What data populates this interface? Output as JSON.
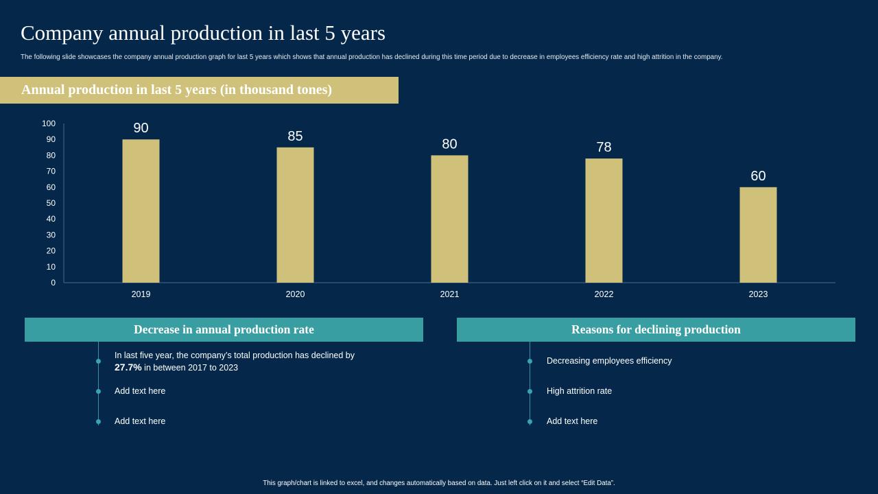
{
  "title": "Company annual production in last 5 years",
  "subtitle": "The following slide showcases the company annual production graph for last 5 years which shows that annual production has declined during this time period due to decrease in employees efficiency rate and high attrition in the company.",
  "chart_banner": "Annual production in last 5 years (in thousand tones)",
  "colors": {
    "background": "#05284a",
    "bar": "#cfc07a",
    "banner_gold": "#cfc07a",
    "panel_teal": "#399ea2",
    "bullet": "#3aa3b0"
  },
  "chart_data": {
    "type": "bar",
    "title": "Annual production in last 5 years (in thousand tones)",
    "categories": [
      "2019",
      "2020",
      "2021",
      "2022",
      "2023"
    ],
    "values": [
      90,
      85,
      80,
      78,
      60
    ],
    "data_labels": [
      "90",
      "85",
      "80",
      "78",
      "60"
    ],
    "ylim": [
      0,
      100
    ],
    "yticks": [
      0,
      10,
      20,
      30,
      40,
      50,
      60,
      70,
      80,
      90,
      100
    ],
    "xlabel": "",
    "ylabel": "",
    "grid": false,
    "legend": "none"
  },
  "left_panel": {
    "header": "Decrease in annual production rate",
    "items": [
      {
        "pre": "In last five year, the company’s total production has declined by ",
        "highlight": "27.7%",
        "post": " in between 2017 to 2023"
      },
      {
        "text": "Add text here"
      },
      {
        "text": "Add text here"
      }
    ]
  },
  "right_panel": {
    "header": "Reasons for declining production",
    "items": [
      {
        "text": "Decreasing employees efficiency"
      },
      {
        "text": "High attrition rate"
      },
      {
        "text": "Add text here"
      }
    ]
  },
  "footer": "This graph/chart is linked to excel, and changes automatically based on data. Just left click on it and select “Edit Data”."
}
